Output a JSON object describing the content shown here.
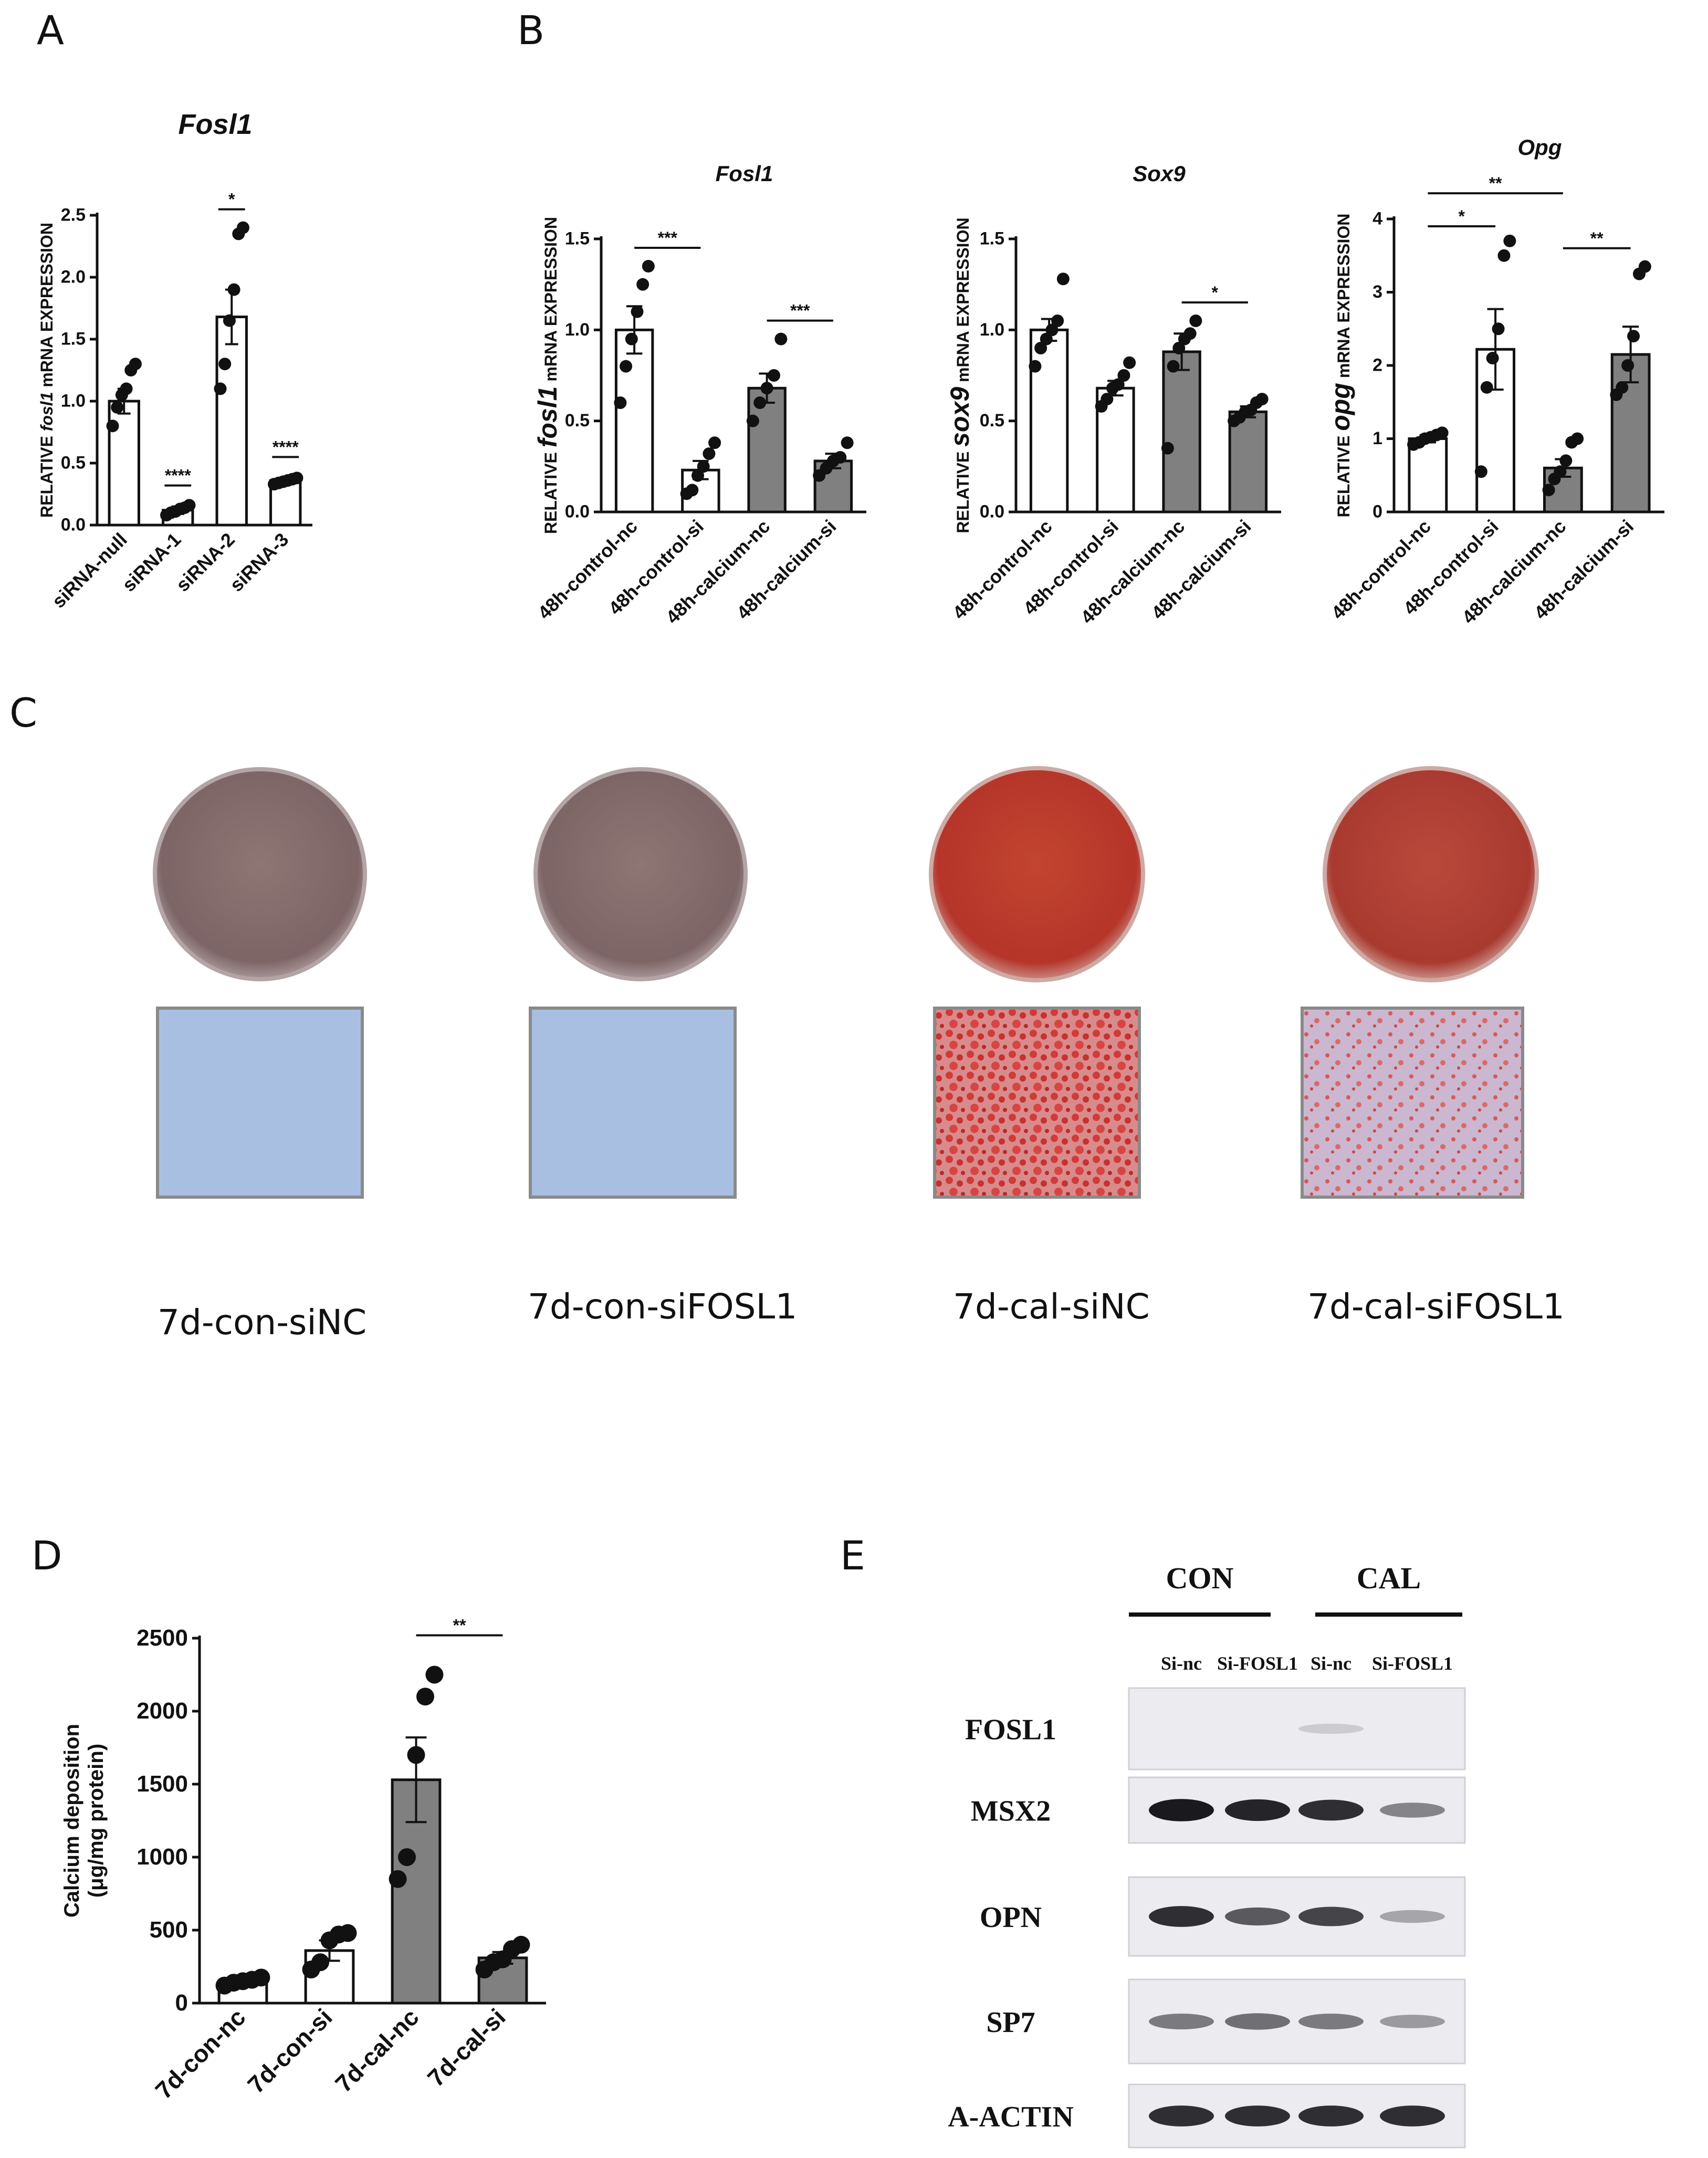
{
  "panels": {
    "A": "A",
    "B": "B",
    "C": "C",
    "D": "D",
    "E": "E"
  },
  "chart_data": [
    {
      "id": "A",
      "type": "bar",
      "title": "Fosl1",
      "ylabel_parts": [
        "RELATIVE ",
        "fosl1",
        " mRNA EXPRESSION"
      ],
      "categories": [
        "siRNA-null",
        "siRNA-1",
        "siRNA-2",
        "siRNA-3"
      ],
      "values": [
        1.0,
        0.12,
        1.68,
        0.36
      ],
      "errors": [
        0.1,
        0.03,
        0.22,
        0.02
      ],
      "points": [
        [
          0.8,
          0.95,
          1.05,
          1.1,
          1.25,
          1.3
        ],
        [
          0.08,
          0.1,
          0.11,
          0.13,
          0.14,
          0.16
        ],
        [
          1.1,
          1.3,
          1.65,
          1.9,
          2.35,
          2.4
        ],
        [
          0.33,
          0.34,
          0.35,
          0.36,
          0.37,
          0.38
        ]
      ],
      "fills": [
        "#ffffff",
        "#ffffff",
        "#ffffff",
        "#ffffff"
      ],
      "ylim": [
        0,
        2.5
      ],
      "yticks": [
        "0.0",
        "0.5",
        "1.0",
        "1.5",
        "2.0",
        "2.5"
      ],
      "annotations": [
        {
          "text": "****",
          "over": 1
        },
        {
          "text": "*",
          "from": 2,
          "to": 2
        },
        {
          "text": "****",
          "over": 3
        }
      ]
    },
    {
      "id": "B1",
      "type": "bar",
      "title": "Fosl1",
      "ylabel_parts": [
        "RELATIVE ",
        "fosl1",
        " mRNA EXPRESSION"
      ],
      "categories": [
        "48h-control-nc",
        "48h-control-si",
        "48h-calcium-nc",
        "48h-calcium-si"
      ],
      "values": [
        1.0,
        0.23,
        0.68,
        0.28
      ],
      "errors": [
        0.13,
        0.05,
        0.08,
        0.04
      ],
      "points": [
        [
          0.6,
          0.8,
          0.95,
          1.1,
          1.25,
          1.35
        ],
        [
          0.1,
          0.12,
          0.2,
          0.25,
          0.32,
          0.38
        ],
        [
          0.5,
          0.6,
          0.68,
          0.75,
          0.95
        ],
        [
          0.2,
          0.24,
          0.28,
          0.3,
          0.38
        ]
      ],
      "fills": [
        "#ffffff",
        "#ffffff",
        "#808080",
        "#808080"
      ],
      "ylim": [
        0,
        1.5
      ],
      "yticks": [
        "0.0",
        "0.5",
        "1.0",
        "1.5"
      ],
      "annotations": [
        {
          "text": "***",
          "from": 0,
          "to": 1
        },
        {
          "text": "***",
          "from": 2,
          "to": 3
        }
      ]
    },
    {
      "id": "B2",
      "type": "bar",
      "title": "Sox9",
      "ylabel_parts": [
        "RELATIVE ",
        "sox9",
        " mRNA EXPRESSION"
      ],
      "categories": [
        "48h-control-nc",
        "48h-control-si",
        "48h-calcium-nc",
        "48h-calcium-si"
      ],
      "values": [
        1.0,
        0.68,
        0.88,
        0.55
      ],
      "errors": [
        0.06,
        0.04,
        0.1,
        0.03
      ],
      "points": [
        [
          0.8,
          0.9,
          0.95,
          1.0,
          1.05,
          1.28
        ],
        [
          0.58,
          0.62,
          0.68,
          0.7,
          0.75,
          0.82
        ],
        [
          0.35,
          0.8,
          0.9,
          0.95,
          0.98,
          1.05
        ],
        [
          0.5,
          0.52,
          0.55,
          0.56,
          0.6,
          0.62
        ]
      ],
      "fills": [
        "#ffffff",
        "#ffffff",
        "#808080",
        "#808080"
      ],
      "ylim": [
        0,
        1.5
      ],
      "yticks": [
        "0.0",
        "0.5",
        "1.0",
        "1.5"
      ],
      "annotations": [
        {
          "text": "*",
          "from": 2,
          "to": 3
        }
      ]
    },
    {
      "id": "B3",
      "type": "bar",
      "title": "Opg",
      "ylabel_parts": [
        "RELATIVE ",
        "opg",
        " mRNA EXPRESSION"
      ],
      "categories": [
        "48h-control-nc",
        "48h-control-si",
        "48h-calcium-nc",
        "48h-calcium-si"
      ],
      "values": [
        1.0,
        2.22,
        0.6,
        2.15
      ],
      "errors": [
        0.05,
        0.55,
        0.12,
        0.38
      ],
      "points": [
        [
          0.92,
          0.95,
          1.0,
          1.02,
          1.05,
          1.08
        ],
        [
          0.55,
          1.7,
          2.1,
          2.5,
          3.5,
          3.7
        ],
        [
          0.3,
          0.45,
          0.55,
          0.7,
          0.95,
          1.0
        ],
        [
          1.6,
          1.7,
          2.0,
          2.4,
          3.25,
          3.35
        ]
      ],
      "fills": [
        "#ffffff",
        "#ffffff",
        "#808080",
        "#808080"
      ],
      "ylim": [
        0,
        4
      ],
      "yticks": [
        "0",
        "1",
        "2",
        "3",
        "4"
      ],
      "annotations": [
        {
          "text": "*",
          "from": 0,
          "to": 1,
          "y": 3.9
        },
        {
          "text": "**",
          "from": 0,
          "to": 2,
          "y": 4.35
        },
        {
          "text": "**",
          "from": 2,
          "to": 3,
          "y": 3.6
        }
      ]
    },
    {
      "id": "D",
      "type": "bar",
      "title": "",
      "ylabel_lines": [
        "Calcium deposition",
        "(μg/mg protein)"
      ],
      "categories": [
        "7d-con-nc",
        "7d-con-si",
        "7d-cal-nc",
        "7d-cal-si"
      ],
      "values": [
        150,
        360,
        1530,
        310
      ],
      "errors": [
        15,
        70,
        290,
        40
      ],
      "points": [
        [
          120,
          140,
          150,
          160,
          175
        ],
        [
          230,
          280,
          430,
          470,
          480
        ],
        [
          850,
          1000,
          1700,
          2100,
          2250
        ],
        [
          230,
          280,
          300,
          370,
          400
        ]
      ],
      "fills": [
        "#ffffff",
        "#ffffff",
        "#808080",
        "#808080"
      ],
      "ylim": [
        0,
        2500
      ],
      "yticks": [
        "0",
        "500",
        "1000",
        "1500",
        "2000",
        "2500"
      ],
      "annotations": [
        {
          "text": "**",
          "from": 2,
          "to": 3,
          "y": 2520
        }
      ]
    }
  ],
  "staining": {
    "labels": [
      "7d-con-siNC",
      "7d-con-siFOSL1",
      "7d-cal-siNC",
      "7d-cal-siFOSL1"
    ],
    "dish_colors": [
      "#8a6e70",
      "#8a7070",
      "#c0392b",
      "#b8392e"
    ],
    "micro_colors": [
      "#a9bfe2",
      "#a9bfe2",
      "#d95f5f",
      "#c9a6c0"
    ]
  },
  "western": {
    "groups": [
      "CON",
      "CAL"
    ],
    "lanes": [
      "Si-nc",
      "Si-FOSL1",
      "Si-nc",
      "Si-FOSL1"
    ],
    "proteins": [
      "FOSL1",
      "MSX2",
      "OPN",
      "SP7",
      "A-ACTIN"
    ],
    "band_intensity": [
      [
        0.0,
        0.0,
        0.12,
        0.0
      ],
      [
        0.95,
        0.9,
        0.85,
        0.45
      ],
      [
        0.85,
        0.65,
        0.75,
        0.3
      ],
      [
        0.5,
        0.55,
        0.5,
        0.35
      ],
      [
        0.85,
        0.85,
        0.85,
        0.85
      ]
    ]
  }
}
